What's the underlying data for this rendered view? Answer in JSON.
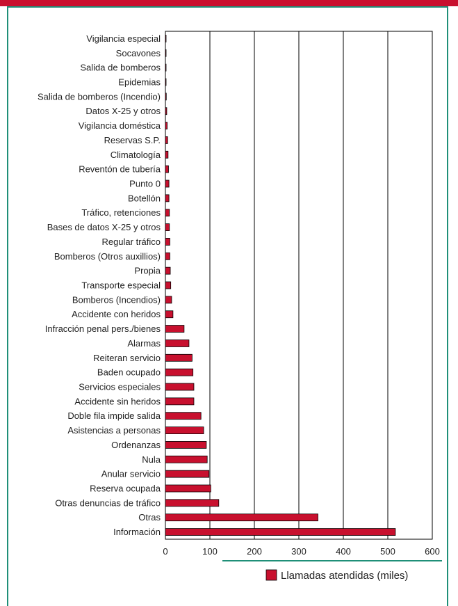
{
  "colors": {
    "bar": "#c8102e",
    "frame": "#1f8f78",
    "header_band": "#c8102e",
    "legend_line": "#1f8f78"
  },
  "chart_data": {
    "type": "bar",
    "orientation": "horizontal",
    "categories": [
      "Vigilancia especial",
      "Socavones",
      "Salida de bomberos",
      "Epidemias",
      "Salida de bomberos (Incendio)",
      "Datos X-25 y otros",
      "Vigilancia doméstica",
      "Reservas S.P.",
      "Climatología",
      "Reventón de tubería",
      "Punto 0",
      "Botellón",
      "Tráfico, retenciones",
      "Bases de datos X-25 y otros",
      "Regular tráfico",
      "Bomberos (Otros auxillios)",
      "Propia",
      "Transporte especial",
      "Bomberos (Incendios)",
      "Accidente con heridos",
      "Infracción penal pers./bienes",
      "Alarmas",
      "Reiteran servicio",
      "Baden ocupado",
      "Servicios especiales",
      "Accidente sin heridos",
      "Doble fila impide salida",
      "Asistencias a personas",
      "Ordenanzas",
      "Nula",
      "Anular servicio",
      "Reserva ocupada",
      "Otras denuncias de tráfico",
      "Otras",
      "Información"
    ],
    "series": [
      {
        "name": "Llamadas atendidas (miles)",
        "values": [
          0.3,
          0.5,
          0.8,
          1.5,
          2,
          3,
          4,
          5,
          6,
          7,
          8,
          8,
          9,
          9,
          10,
          10,
          11,
          12,
          14,
          17,
          42,
          53,
          60,
          62,
          64,
          64,
          80,
          86,
          92,
          94,
          98,
          102,
          120,
          343,
          517
        ]
      }
    ],
    "xlim": [
      0,
      600
    ],
    "xticks": [
      "0",
      "100",
      "200",
      "300",
      "400",
      "500",
      "600"
    ],
    "grid": "vertical",
    "legend_position": "bottom-right",
    "xlabel": "",
    "ylabel": ""
  }
}
